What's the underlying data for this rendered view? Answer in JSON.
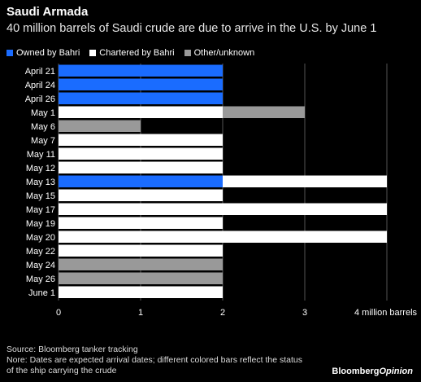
{
  "chart_data": {
    "type": "bar",
    "orientation": "horizontal",
    "stacked": true,
    "title": "Saudi Armada",
    "subtitle": "40 million barrels of Saudi crude are due to arrive in the U.S. by June 1",
    "xlabel": "",
    "ylabel": "",
    "xlim": [
      0,
      4
    ],
    "x_ticks": [
      "0",
      "1",
      "2",
      "3",
      "4 million barrels"
    ],
    "grid": true,
    "legend_position": "top-left",
    "categories": [
      "April 21",
      "April 24",
      "April 26",
      "May 1",
      "May 6",
      "May 7",
      "May 11",
      "May 12",
      "May 13",
      "May 15",
      "May 17",
      "May 19",
      "May 20",
      "May 22",
      "May 24",
      "May 26",
      "June 1"
    ],
    "series": [
      {
        "name": "Owned by Bahri",
        "color": "#1a6cff",
        "values": [
          2,
          2,
          2,
          0,
          0,
          0,
          0,
          0,
          2,
          0,
          0,
          0,
          0,
          0,
          0,
          0,
          0
        ]
      },
      {
        "name": "Chartered by Bahri",
        "color": "#ffffff",
        "values": [
          0,
          0,
          0,
          2,
          0,
          2,
          2,
          2,
          2,
          2,
          4,
          2,
          4,
          2,
          0,
          0,
          2
        ]
      },
      {
        "name": "Other/unknown",
        "color": "#999999",
        "values": [
          0,
          0,
          0,
          1,
          1,
          0,
          0,
          0,
          0,
          0,
          0,
          0,
          0,
          0,
          2,
          2,
          0
        ]
      }
    ]
  },
  "footer": {
    "source": "Source: Bloomberg tanker tracking",
    "note_line1": "Nore: Dates are expected arrival dates; different colored bars reflect the status",
    "note_line2": "of the ship carrying the crude",
    "logo_main": "Bloomberg",
    "logo_sub": "Opinion"
  }
}
